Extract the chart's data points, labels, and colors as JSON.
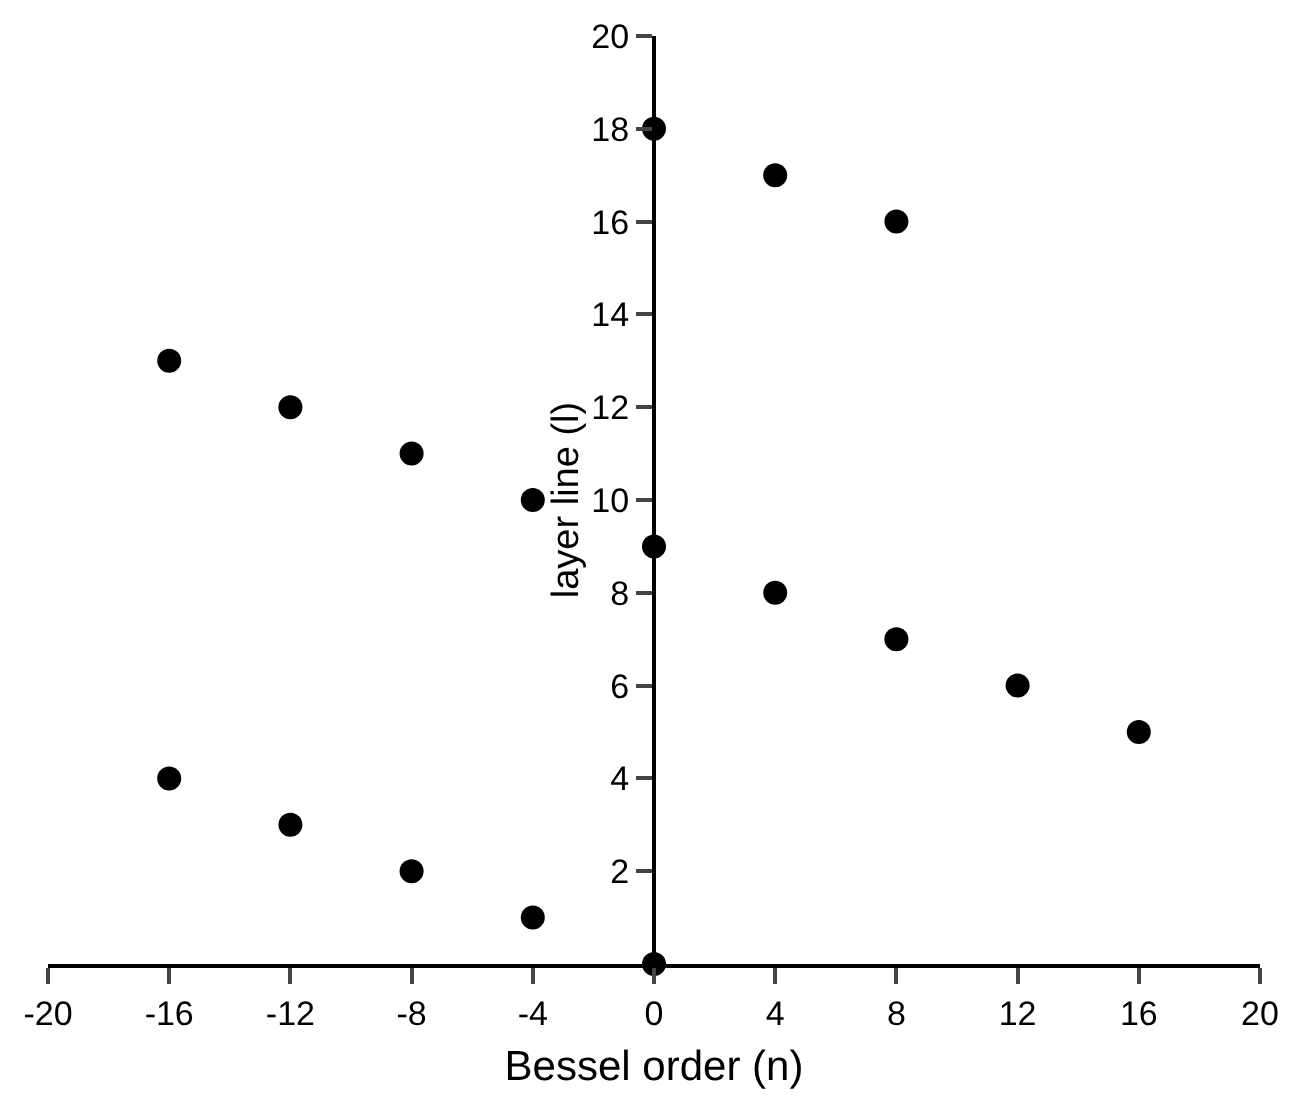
{
  "chart_data": {
    "type": "scatter",
    "xlabel": "Bessel order (n)",
    "ylabel": "layer line (l)",
    "x": [
      0,
      4,
      8,
      -16,
      -12,
      -8,
      -4,
      0,
      4,
      8,
      12,
      16,
      -16,
      -12,
      -8,
      -4,
      0
    ],
    "values": [
      18,
      17,
      16,
      13,
      12,
      11,
      10,
      9,
      8,
      7,
      6,
      5,
      4,
      3,
      2,
      1,
      0
    ],
    "color": "#000000",
    "marker": "circle",
    "grid": false,
    "xlim": [
      -20,
      20
    ],
    "xticks": [
      -20,
      -16,
      -12,
      -8,
      -4,
      0,
      4,
      8,
      12,
      16,
      20
    ],
    "ylim": [
      0,
      20
    ],
    "yticks": [
      2,
      4,
      6,
      8,
      10,
      12,
      14,
      16,
      18,
      20
    ]
  }
}
